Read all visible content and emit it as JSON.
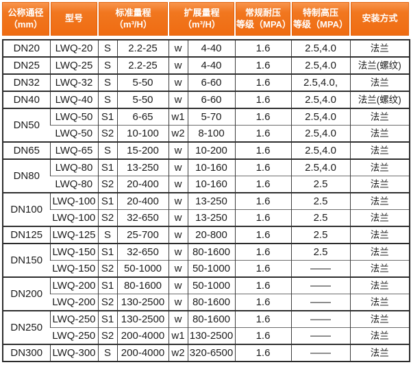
{
  "colors": {
    "header_orange": "#f0711c",
    "header_orange_light": "#f8944d",
    "header_border": "#e2620c",
    "header_text": "#ffffff",
    "body_text": "#1b1b1b",
    "grid_dark": "#2c2c2c",
    "grid_light": "#6b6b6b",
    "background": "#ffffff"
  },
  "header_display": [
    "公称通径\n（mm）",
    "型号",
    "标准量程\n（m³/H）",
    "扩展量程\n（m³/H）",
    "常规耐压\n等级（MPA）",
    "特制高压\n等级（MPA）",
    "安装方式"
  ],
  "chart_data": {
    "type": "table",
    "title": "",
    "columns": [
      "公称通径（mm）",
      "型号",
      "标准量程（m³/H）",
      "扩展量程（m³/H）",
      "常规耐压等级（MPA）",
      "特制高压等级（MPA）",
      "安装方式"
    ],
    "groups": [
      {
        "dn": "DN20",
        "entries": [
          {
            "model": "LWQ-20",
            "s": "S",
            "std": "2.2-25",
            "w": "w",
            "ext": "4-40",
            "pressure": "1.6",
            "high": "2.5,4.0",
            "install": "法兰"
          }
        ]
      },
      {
        "dn": "DN25",
        "entries": [
          {
            "model": "LWQ-25",
            "s": "S",
            "std": "2.2-25",
            "w": "w",
            "ext": "4-40",
            "pressure": "1.6",
            "high": "2.5,4.0",
            "install": "法兰(螺纹)"
          }
        ]
      },
      {
        "dn": "DN32",
        "entries": [
          {
            "model": "LWQ-32",
            "s": "S",
            "std": "5-50",
            "w": "w",
            "ext": "6-60",
            "pressure": "1.6",
            "high": "2.5,4.0,",
            "install": "法兰"
          }
        ]
      },
      {
        "dn": "DN40",
        "entries": [
          {
            "model": "LWQ-40",
            "s": "S",
            "std": "5-50",
            "w": "w",
            "ext": "6-60",
            "pressure": "1.6",
            "high": "2.5,4.0",
            "install": "法兰(螺纹)"
          }
        ]
      },
      {
        "dn": "DN50",
        "entries": [
          {
            "model": "LWQ-50",
            "s": "S1",
            "std": "6-65",
            "w": "w1",
            "ext": "5-70",
            "pressure": "1.6",
            "high": "2.5,4.0",
            "install": "法兰"
          },
          {
            "model": "LWQ-50",
            "s": "S2",
            "std": "10-100",
            "w": "w2",
            "ext": "8-100",
            "pressure": "1.6",
            "high": "2.5,4.0",
            "install": "法兰"
          }
        ]
      },
      {
        "dn": "DN65",
        "entries": [
          {
            "model": "LWQ-65",
            "s": "S",
            "std": "15-200",
            "w": "w",
            "ext": "10-200",
            "pressure": "1.6",
            "high": "2.5,4.0",
            "install": "法兰"
          }
        ]
      },
      {
        "dn": "DN80",
        "entries": [
          {
            "model": "LWQ-80",
            "s": "S1",
            "std": "13-250",
            "w": "w",
            "ext": "10-160",
            "pressure": "1.6",
            "high": "2.5,4.0",
            "install": "法兰"
          },
          {
            "model": "LWQ-80",
            "s": "S2",
            "std": "20-400",
            "w": "w",
            "ext": "10-160",
            "pressure": "1.6",
            "high": "2.5",
            "install": "法兰"
          }
        ]
      },
      {
        "dn": "DN100",
        "entries": [
          {
            "model": "LWQ-100",
            "s": "S1",
            "std": "20-400",
            "w": "w",
            "ext": "13-250",
            "pressure": "1.6",
            "high": "2.5",
            "install": "法兰"
          },
          {
            "model": "LWQ-100",
            "s": "S2",
            "std": "32-650",
            "w": "w",
            "ext": "13-250",
            "pressure": "1.6",
            "high": "2.5",
            "install": "法兰"
          }
        ]
      },
      {
        "dn": "DN125",
        "entries": [
          {
            "model": "LWQ-125",
            "s": "S",
            "std": "25-700",
            "w": "w",
            "ext": "20-800",
            "pressure": "1.6",
            "high": "2.5",
            "install": "法兰"
          }
        ]
      },
      {
        "dn": "DN150",
        "entries": [
          {
            "model": "LWQ-150",
            "s": "S1",
            "std": "32-650",
            "w": "w",
            "ext": "80-1600",
            "pressure": "1.6",
            "high": "2.5",
            "install": "法兰"
          },
          {
            "model": "LWQ-150",
            "s": "S2",
            "std": "50-1000",
            "w": "w",
            "ext": "50-1000",
            "pressure": "1.6",
            "high": "——",
            "install": "法兰"
          }
        ]
      },
      {
        "dn": "DN200",
        "entries": [
          {
            "model": "LWQ-200",
            "s": "S1",
            "std": "80-1600",
            "w": "w",
            "ext": "50-1000",
            "pressure": "1.6",
            "high": "——",
            "install": "法兰"
          },
          {
            "model": "LWQ-200",
            "s": "S2",
            "std": "130-2500",
            "w": "w",
            "ext": "80-1600",
            "pressure": "1.6",
            "high": "——",
            "install": "法兰"
          }
        ]
      },
      {
        "dn": "DN250",
        "entries": [
          {
            "model": "LWQ-250",
            "s": "S1",
            "std": "130-2500",
            "w": "w",
            "ext": "80-1600",
            "pressure": "1.6",
            "high": "——",
            "install": "法兰"
          },
          {
            "model": "LWQ-250",
            "s": "S2",
            "std": "200-4000",
            "w": "w1",
            "ext": "130-2500",
            "pressure": "1.6",
            "high": "——",
            "install": "法兰"
          }
        ]
      },
      {
        "dn": "DN300",
        "entries": [
          {
            "model": "LWQ-300",
            "s": "S",
            "std": "200-4000",
            "w": "w2",
            "ext": "320-6500",
            "pressure": "1.6",
            "high": "——",
            "install": "法兰"
          }
        ]
      }
    ]
  }
}
